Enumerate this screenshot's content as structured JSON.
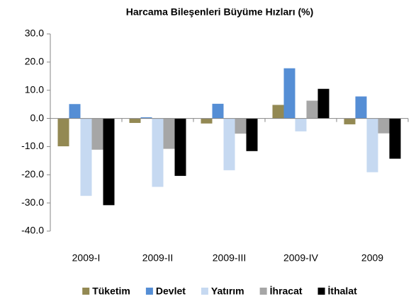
{
  "chart_data": {
    "type": "bar",
    "title": "Harcama Bileşenleri  Büyüme Hızları (%)",
    "categories": [
      "2009-I",
      "2009-II",
      "2009-III",
      "2009-IV",
      "2009"
    ],
    "series": [
      {
        "name": "Tüketim",
        "color": "#938953",
        "values": [
          -9.9,
          -1.6,
          -1.8,
          4.8,
          -2.1
        ]
      },
      {
        "name": "Devlet",
        "color": "#558ed5",
        "values": [
          5.1,
          0.4,
          5.2,
          17.8,
          7.8
        ]
      },
      {
        "name": "Yatırım",
        "color": "#c6d9f1",
        "values": [
          -27.5,
          -24.3,
          -18.4,
          -4.6,
          -19.1
        ]
      },
      {
        "name": "İhracat",
        "color": "#a6a6a6",
        "values": [
          -11.1,
          -10.8,
          -5.4,
          6.3,
          -5.3
        ]
      },
      {
        "name": "İthalat",
        "color": "#000000",
        "values": [
          -30.8,
          -20.4,
          -11.6,
          10.5,
          -14.3
        ]
      }
    ],
    "ylim": [
      -40,
      30
    ],
    "yticks": [
      {
        "value": -40,
        "label": "-40.0"
      },
      {
        "value": -30,
        "label": "-30.0"
      },
      {
        "value": -20,
        "label": "-20.0"
      },
      {
        "value": -10,
        "label": "-10.0"
      },
      {
        "value": 0,
        "label": "0.0"
      },
      {
        "value": 10,
        "label": "10.0"
      },
      {
        "value": 20,
        "label": "20.0"
      },
      {
        "value": 30,
        "label": "30.0"
      }
    ],
    "grid": false,
    "legend": "bottom"
  }
}
